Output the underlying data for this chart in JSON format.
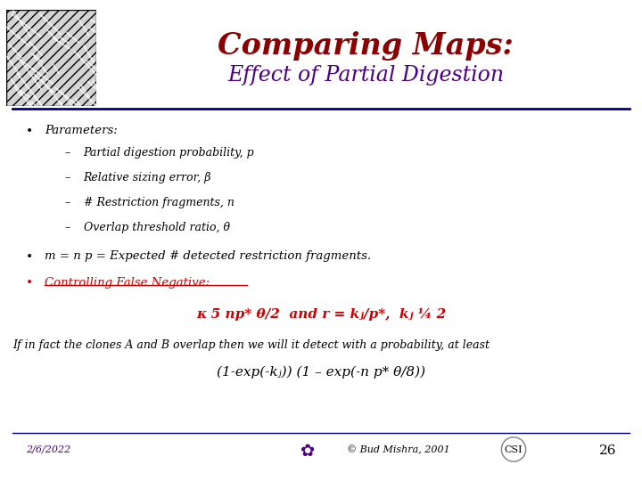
{
  "title": "Comparing Maps:",
  "subtitle": "Effect of Partial Digestion",
  "title_color": "#8B0000",
  "subtitle_color": "#4B0082",
  "line_color": "#00008B",
  "bullet1": "Parameters:",
  "sub_bullets": [
    "Partial digestion probability, p",
    "Relative sizing error, β",
    "# Restriction fragments, n",
    "Overlap threshold ratio, θ"
  ],
  "bullet2": "m = n p = Expected # detected restriction fragments.",
  "bullet3": "Controlling False Negative:",
  "formula1": "κ 5 np* θ/2  and r = kⱼ/p*,  kⱼ ¼ 2",
  "body_text": "If in fact the clones A and B overlap then we will it detect with a probability, at least",
  "formula2": "(1-exp(-kⱼ)) (1 – exp(-n p* θ/8))",
  "footer_date": "2/6/2022",
  "footer_copy": "© Bud Mishra, 2001",
  "footer_page": "26",
  "bg_color": "#FFFFFF",
  "text_color": "#000000",
  "red_color": "#CC0000",
  "footer_color": "#4B0082"
}
